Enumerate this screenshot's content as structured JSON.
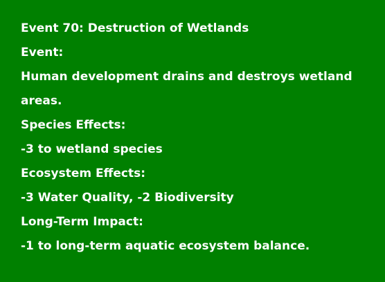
{
  "event_card": {
    "title": "Event 70: Destruction of Wetlands",
    "event_heading": "Event:",
    "event_description": "Human development drains and destroys wetland areas.",
    "species_heading": "Species Effects:",
    "species_effects": "-3 to wetland species",
    "ecosystem_heading": "Ecosystem Effects:",
    "ecosystem_effects": "-3 Water Quality, -2 Biodiversity",
    "long_term_heading": "Long-Term Impact:",
    "long_term_effects": "-1 to long-term aquatic ecosystem balance."
  },
  "colors": {
    "background": "#008000",
    "text": "#ffffff"
  }
}
